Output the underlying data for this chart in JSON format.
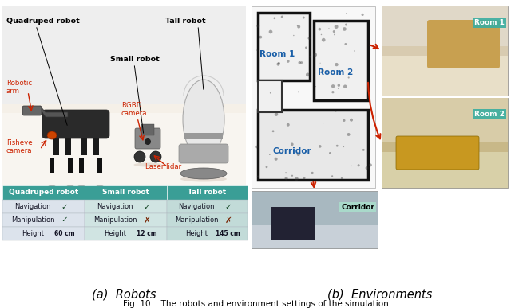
{
  "title_a": "(a)  Robots",
  "title_b": "(b)  Environments",
  "caption": "Fig. 10.   The robots and environment settings of the simulation",
  "table_header_color": "#3a9e96",
  "table_col1_bg": "#dce3ec",
  "table_col2_bg": "#d0e4e2",
  "table_col3_bg": "#c2dbd8",
  "table_headers": [
    "Quadruped robot",
    "Small robot",
    "Tall robot"
  ],
  "table_rows": [
    [
      "Navigation",
      "✓",
      "Navigation",
      "✓",
      "Navigation",
      "✓"
    ],
    [
      "Manipulation",
      "✓",
      "Manipulation",
      "✗",
      "Manipulation",
      "✗"
    ],
    [
      "Height",
      "60 cm",
      "Height",
      "12 cm",
      "Height",
      "145 cm"
    ]
  ],
  "label_quadruped": "Quadruped robot",
  "label_tall": "Tall robot",
  "label_small": "Small robot",
  "label_robotic_arm": "Robotic\narm",
  "label_rgbd": "RGBD\ncamera",
  "label_fisheye": "Fisheye\ncamera",
  "label_laser": "Laser lidar",
  "label_room1": "Room 1",
  "label_room2": "Room 2",
  "label_corridor": "Corridor",
  "arrow_color": "#cc2200",
  "map_text_color": "#000000",
  "bg_color": "#ffffff",
  "robot_bg": "#e8e8e8",
  "room1_label_color": "#1a5fa8",
  "room2_label_color": "#1a5fa8",
  "corridor_label_color": "#1a5fa8"
}
